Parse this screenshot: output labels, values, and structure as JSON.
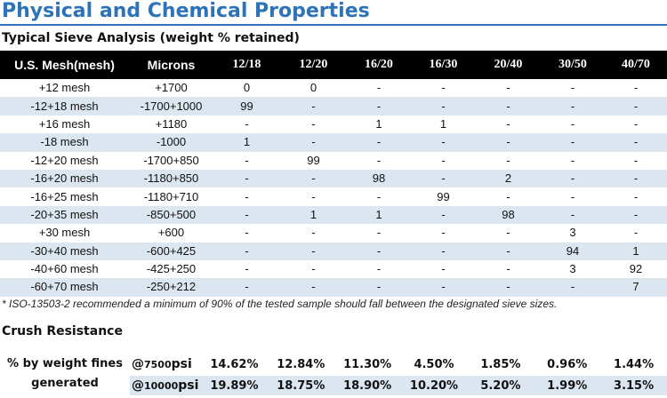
{
  "title": "Physical and Chemical Properties",
  "subtitle": "Typical Sieve Analysis (weight % retained)",
  "table": {
    "headers": [
      "U.S. Mesh(mesh)",
      "Microns",
      "12/18",
      "12/20",
      "16/20",
      "16/30",
      "20/40",
      "30/50",
      "40/70"
    ],
    "rows": [
      [
        "+12 mesh",
        "+1700",
        "0",
        "0",
        "-",
        "-",
        "-",
        "-",
        "-"
      ],
      [
        "-12+18 mesh",
        "-1700+1000",
        "99",
        "-",
        "-",
        "-",
        "-",
        "-",
        "-"
      ],
      [
        "+16 mesh",
        "+1180",
        "-",
        "-",
        "1",
        "1",
        "-",
        "-",
        "-"
      ],
      [
        "-18 mesh",
        "-1000",
        "1",
        "-",
        "-",
        "-",
        "-",
        "-",
        "-"
      ],
      [
        "-12+20 mesh",
        "-1700+850",
        "-",
        "99",
        "-",
        "-",
        "-",
        "-",
        "-"
      ],
      [
        "-16+20 mesh",
        "-1180+850",
        "-",
        "-",
        "98",
        "-",
        "2",
        "-",
        "-"
      ],
      [
        "-16+25 mesh",
        "-1180+710",
        "-",
        "-",
        "-",
        "99",
        "-",
        "-",
        "-"
      ],
      [
        "-20+35 mesh",
        "-850+500",
        "-",
        "1",
        "1",
        "-",
        "98",
        "-",
        "-"
      ],
      [
        "+30 mesh",
        "+600",
        "-",
        "-",
        "-",
        "-",
        "-",
        "3",
        "-"
      ],
      [
        "-30+40 mesh",
        "-600+425",
        "-",
        "-",
        "-",
        "-",
        "-",
        "94",
        "1"
      ],
      [
        "-40+60 mesh",
        "-425+250",
        "-",
        "-",
        "-",
        "-",
        "-",
        "3",
        "92"
      ],
      [
        "-60+70 mesh",
        "-250+212",
        "-",
        "-",
        "-",
        "-",
        "-",
        "-",
        "7"
      ]
    ]
  },
  "footnote": "* ISO-13503-2 recommended a minimum of 90% of the tested sample should fall between the designated sieve sizes.",
  "crush": {
    "title": "Crush Resistance",
    "label_line1": "% by weight fines",
    "label_line2": "generated",
    "rows": [
      {
        "cond_prefix": "@",
        "cond_value": "7500",
        "cond_unit": "psi",
        "values": [
          "14.62%",
          "12.84%",
          "11.30%",
          "4.50%",
          "1.85%",
          "0.96%",
          "1.44%"
        ]
      },
      {
        "cond_prefix": "@",
        "cond_value": "10000",
        "cond_unit": "psi",
        "values": [
          "19.89%",
          "18.75%",
          "18.90%",
          "10.20%",
          "5.20%",
          "1.99%",
          "3.15%"
        ]
      }
    ]
  },
  "colors": {
    "accent": "#2e73b8",
    "header_bg": "#000000",
    "stripe": "#dce6f1"
  }
}
